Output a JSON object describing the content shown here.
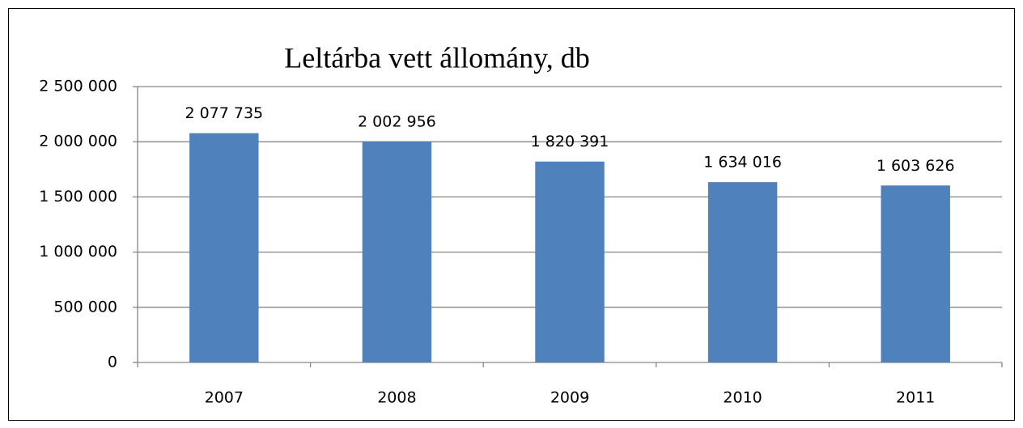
{
  "chart_data": {
    "type": "bar",
    "title": "Leltárba vett állomány, db",
    "categories": [
      "2007",
      "2008",
      "2009",
      "2010",
      "2011"
    ],
    "values": [
      2077735,
      2002956,
      1820391,
      1634016,
      1603626
    ],
    "value_labels": [
      "2 077 735",
      "2 002 956",
      "1 820 391",
      "1 634 016",
      "1 603 626"
    ],
    "color": "#4f81bd",
    "ylim": [
      0,
      2500000
    ],
    "yticks": [
      0,
      {
        "value": 500000,
        "label": "500 000"
      },
      {
        "value": 1000000,
        "label": "1 000 000"
      },
      {
        "value": 1500000,
        "label": "1 500 000"
      },
      {
        "value": 2000000,
        "label": "2 000 000"
      },
      {
        "value": 2500000,
        "label": "2 500 000"
      }
    ],
    "grid": true
  }
}
